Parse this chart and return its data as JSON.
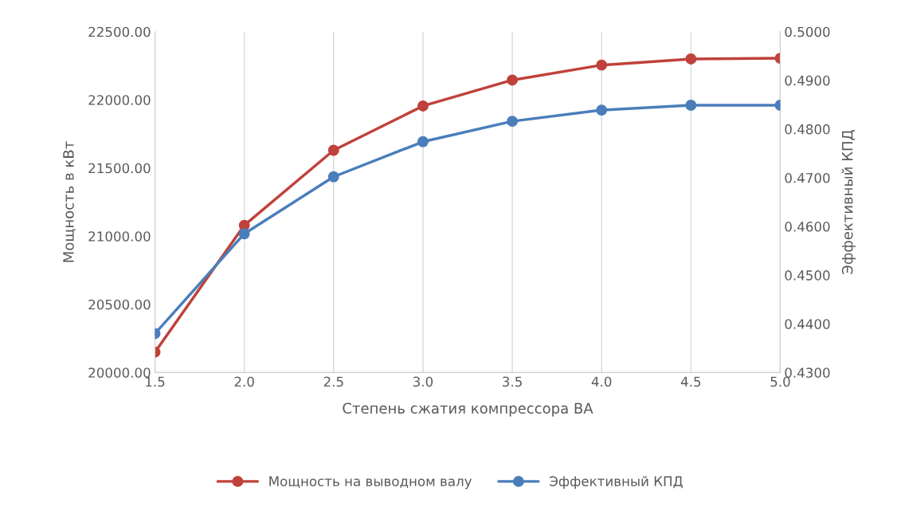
{
  "chart_data": {
    "type": "line",
    "xlabel": "Степень сжатия компрессора ВА",
    "ylabel": "Мощность в кВт",
    "y2label": "Эффективный КПД",
    "x": [
      1.5,
      2.0,
      2.5,
      3.0,
      3.5,
      4.0,
      4.5,
      5.0
    ],
    "series": [
      {
        "name": "Мощность на выводном валу",
        "color": "#c0413b",
        "values": [
          20150,
          21080,
          21630,
          21955,
          22145,
          22255,
          22300,
          22305
        ]
      },
      {
        "name": "Эффективный КПД",
        "color": "#4a7ebb",
        "axis": "y2",
        "values": [
          0.438,
          0.4585,
          0.4702,
          0.4774,
          0.4816,
          0.4839,
          0.4849,
          0.4849
        ]
      }
    ],
    "xlim": [
      1.5,
      5.0
    ],
    "xticks": [
      {
        "value": 1.5,
        "label": "1.5"
      },
      {
        "value": 2.0,
        "label": "2.0"
      },
      {
        "value": 2.5,
        "label": "2.5"
      },
      {
        "value": 3.0,
        "label": "3.0"
      },
      {
        "value": 3.5,
        "label": "3.5"
      },
      {
        "value": 4.0,
        "label": "4.0"
      },
      {
        "value": 4.5,
        "label": "4.5"
      },
      {
        "value": 5.0,
        "label": "5.0"
      }
    ],
    "ylim": [
      20000,
      22500
    ],
    "yticks": [
      {
        "value": 20000,
        "label": "20000.00"
      },
      {
        "value": 20500,
        "label": "20500.00"
      },
      {
        "value": 21000,
        "label": "21000.00"
      },
      {
        "value": 21500,
        "label": "21500.00"
      },
      {
        "value": 22000,
        "label": "22000.00"
      },
      {
        "value": 22500,
        "label": "22500.00"
      }
    ],
    "y2lim": [
      0.43,
      0.5
    ],
    "y2ticks": [
      {
        "value": 0.43,
        "label": "0.4300"
      },
      {
        "value": 0.44,
        "label": "0.4400"
      },
      {
        "value": 0.45,
        "label": "0.4500"
      },
      {
        "value": 0.46,
        "label": "0.4600"
      },
      {
        "value": 0.47,
        "label": "0.4700"
      },
      {
        "value": 0.48,
        "label": "0.4800"
      },
      {
        "value": 0.49,
        "label": "0.4900"
      },
      {
        "value": 0.5,
        "label": "0.5000"
      }
    ],
    "grid": "x",
    "legend": "bottom",
    "marker": "circle",
    "line_style": "solid"
  }
}
